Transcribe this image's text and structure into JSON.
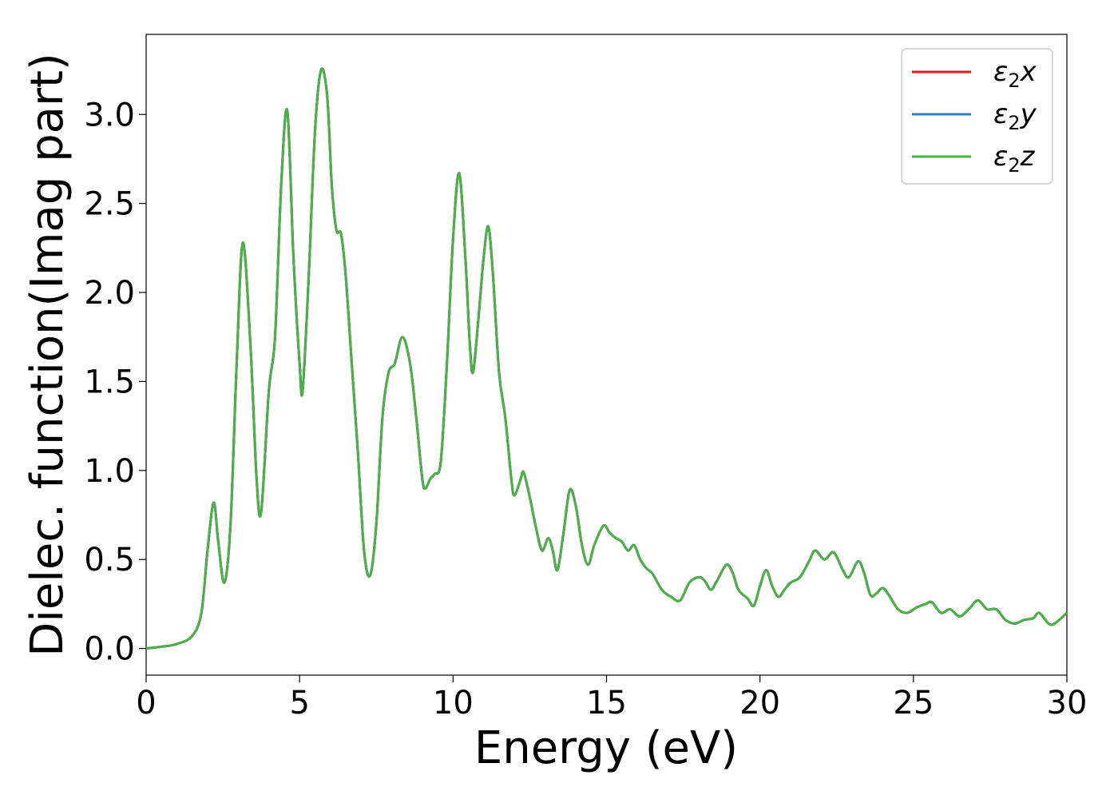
{
  "chart_data": {
    "type": "line",
    "xlabel": "Energy (eV)",
    "ylabel": "Dielec. function(Imag part)",
    "xlim": [
      0,
      30
    ],
    "ylim": [
      -0.15,
      3.45
    ],
    "x_ticks": [
      "0",
      "5",
      "10",
      "15",
      "20",
      "25",
      "30"
    ],
    "y_ticks": [
      "0.0",
      "0.5",
      "1.0",
      "1.5",
      "2.0",
      "2.5",
      "3.0"
    ],
    "grid": false,
    "legend_position": "top-right",
    "series": [
      {
        "name": "ε2x",
        "legend_base": "ε",
        "legend_sub": "2",
        "legend_tail": "x",
        "color": "#e41a1c"
      },
      {
        "name": "ε2y",
        "legend_base": "ε",
        "legend_sub": "2",
        "legend_tail": "y",
        "color": "#377eb8"
      },
      {
        "name": "ε2z",
        "legend_base": "ε",
        "legend_sub": "2",
        "legend_tail": "z",
        "color": "#4daf4a"
      }
    ],
    "points": [
      [
        0,
        0.0
      ],
      [
        0.5,
        0.01
      ],
      [
        1.0,
        0.025
      ],
      [
        1.5,
        0.07
      ],
      [
        1.8,
        0.2
      ],
      [
        2.0,
        0.55
      ],
      [
        2.2,
        0.82
      ],
      [
        2.35,
        0.6
      ],
      [
        2.55,
        0.37
      ],
      [
        2.75,
        0.7
      ],
      [
        2.95,
        1.6
      ],
      [
        3.15,
        2.28
      ],
      [
        3.4,
        1.7
      ],
      [
        3.6,
        0.95
      ],
      [
        3.75,
        0.77
      ],
      [
        4.0,
        1.45
      ],
      [
        4.2,
        1.75
      ],
      [
        4.4,
        2.6
      ],
      [
        4.6,
        3.02
      ],
      [
        4.8,
        2.2
      ],
      [
        5.0,
        1.6
      ],
      [
        5.1,
        1.45
      ],
      [
        5.3,
        2.1
      ],
      [
        5.5,
        2.9
      ],
      [
        5.7,
        3.25
      ],
      [
        5.9,
        3.1
      ],
      [
        6.05,
        2.6
      ],
      [
        6.2,
        2.35
      ],
      [
        6.35,
        2.33
      ],
      [
        6.5,
        2.1
      ],
      [
        6.7,
        1.6
      ],
      [
        6.9,
        1.1
      ],
      [
        7.1,
        0.55
      ],
      [
        7.3,
        0.41
      ],
      [
        7.5,
        0.7
      ],
      [
        7.7,
        1.3
      ],
      [
        7.9,
        1.55
      ],
      [
        8.1,
        1.6
      ],
      [
        8.35,
        1.75
      ],
      [
        8.6,
        1.6
      ],
      [
        8.8,
        1.3
      ],
      [
        9.0,
        0.95
      ],
      [
        9.1,
        0.9
      ],
      [
        9.25,
        0.95
      ],
      [
        9.4,
        0.98
      ],
      [
        9.6,
        1.05
      ],
      [
        9.8,
        1.6
      ],
      [
        10.0,
        2.3
      ],
      [
        10.2,
        2.67
      ],
      [
        10.4,
        2.2
      ],
      [
        10.55,
        1.7
      ],
      [
        10.65,
        1.55
      ],
      [
        10.8,
        1.8
      ],
      [
        11.0,
        2.2
      ],
      [
        11.15,
        2.37
      ],
      [
        11.3,
        2.1
      ],
      [
        11.5,
        1.55
      ],
      [
        11.7,
        1.3
      ],
      [
        11.9,
        0.95
      ],
      [
        12.0,
        0.86
      ],
      [
        12.2,
        0.95
      ],
      [
        12.3,
        0.99
      ],
      [
        12.5,
        0.85
      ],
      [
        12.7,
        0.68
      ],
      [
        12.9,
        0.55
      ],
      [
        13.1,
        0.62
      ],
      [
        13.25,
        0.55
      ],
      [
        13.4,
        0.44
      ],
      [
        13.6,
        0.65
      ],
      [
        13.8,
        0.89
      ],
      [
        14.0,
        0.8
      ],
      [
        14.2,
        0.58
      ],
      [
        14.4,
        0.47
      ],
      [
        14.6,
        0.58
      ],
      [
        14.9,
        0.69
      ],
      [
        15.1,
        0.65
      ],
      [
        15.3,
        0.62
      ],
      [
        15.5,
        0.6
      ],
      [
        15.7,
        0.55
      ],
      [
        15.9,
        0.58
      ],
      [
        16.1,
        0.5
      ],
      [
        16.3,
        0.45
      ],
      [
        16.5,
        0.42
      ],
      [
        16.8,
        0.33
      ],
      [
        17.1,
        0.29
      ],
      [
        17.4,
        0.27
      ],
      [
        17.7,
        0.37
      ],
      [
        18.0,
        0.4
      ],
      [
        18.2,
        0.38
      ],
      [
        18.4,
        0.33
      ],
      [
        18.6,
        0.38
      ],
      [
        18.9,
        0.47
      ],
      [
        19.1,
        0.43
      ],
      [
        19.3,
        0.33
      ],
      [
        19.6,
        0.28
      ],
      [
        19.8,
        0.24
      ],
      [
        20.0,
        0.35
      ],
      [
        20.2,
        0.44
      ],
      [
        20.4,
        0.35
      ],
      [
        20.6,
        0.29
      ],
      [
        20.8,
        0.33
      ],
      [
        21.0,
        0.37
      ],
      [
        21.3,
        0.4
      ],
      [
        21.6,
        0.49
      ],
      [
        21.8,
        0.55
      ],
      [
        22.1,
        0.5
      ],
      [
        22.4,
        0.54
      ],
      [
        22.7,
        0.44
      ],
      [
        22.9,
        0.4
      ],
      [
        23.2,
        0.49
      ],
      [
        23.4,
        0.42
      ],
      [
        23.6,
        0.3
      ],
      [
        23.8,
        0.31
      ],
      [
        24.0,
        0.34
      ],
      [
        24.2,
        0.3
      ],
      [
        24.5,
        0.22
      ],
      [
        24.8,
        0.2
      ],
      [
        25.1,
        0.23
      ],
      [
        25.4,
        0.25
      ],
      [
        25.6,
        0.26
      ],
      [
        25.9,
        0.2
      ],
      [
        26.2,
        0.22
      ],
      [
        26.5,
        0.18
      ],
      [
        26.8,
        0.22
      ],
      [
        27.1,
        0.27
      ],
      [
        27.4,
        0.22
      ],
      [
        27.7,
        0.22
      ],
      [
        28.0,
        0.16
      ],
      [
        28.3,
        0.14
      ],
      [
        28.6,
        0.16
      ],
      [
        28.9,
        0.17
      ],
      [
        29.1,
        0.2
      ],
      [
        29.4,
        0.14
      ],
      [
        29.6,
        0.14
      ],
      [
        30.0,
        0.2
      ]
    ]
  }
}
